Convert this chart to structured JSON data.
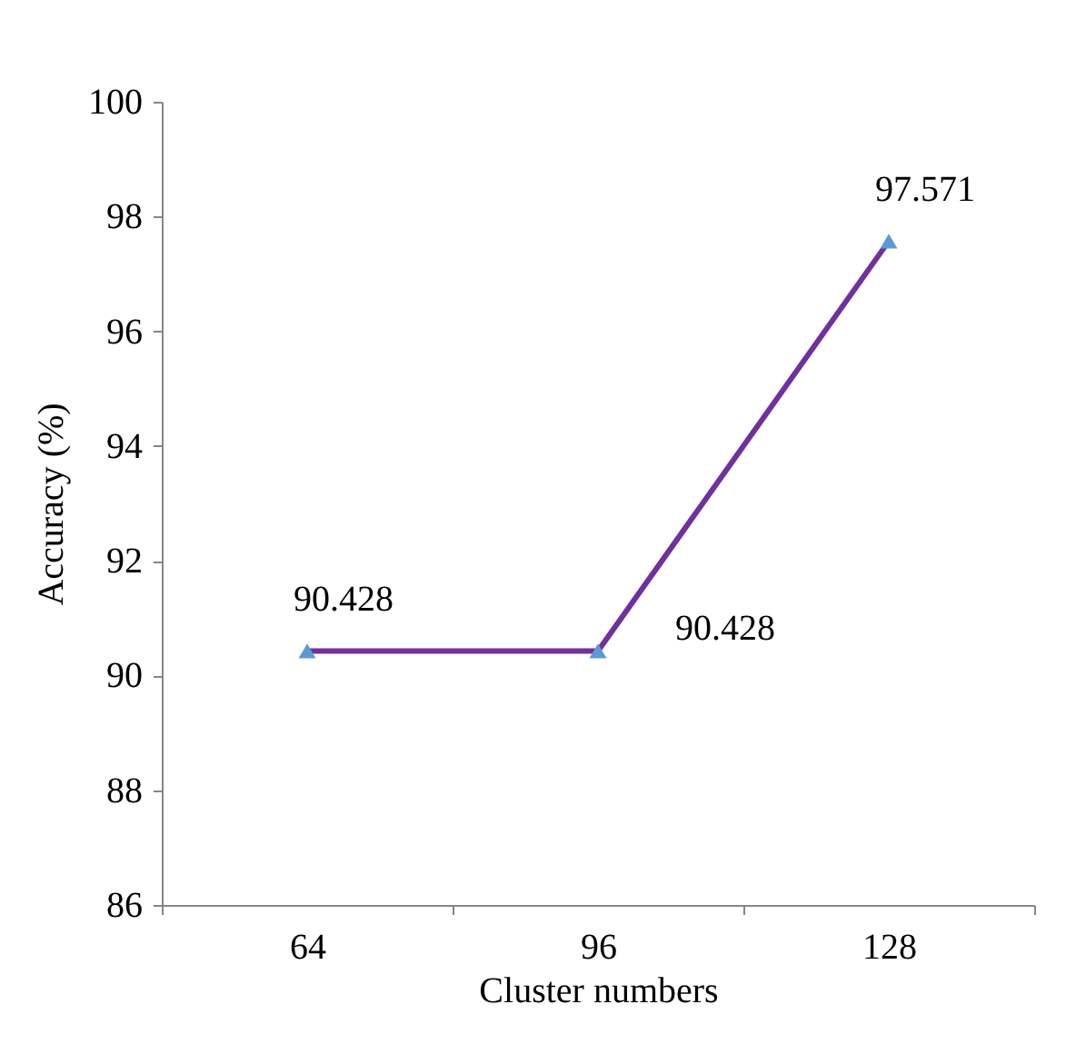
{
  "chart_data": {
    "type": "line",
    "xlabel": "Cluster numbers",
    "ylabel": "Accuracy (%)",
    "categories": [
      "64",
      "96",
      "128"
    ],
    "series": [
      {
        "color": "#7030a0",
        "colors": [
          "#5b9bd5",
          "#5b9bd5",
          "#5b9bd5"
        ],
        "values": [
          90.428,
          90.428,
          97.571
        ]
      }
    ],
    "ylim": [
      86,
      100
    ],
    "yticks": [
      86,
      88,
      90,
      92,
      94,
      96,
      98,
      100
    ],
    "marker": "triangle",
    "data_labels": true,
    "grid": false
  }
}
